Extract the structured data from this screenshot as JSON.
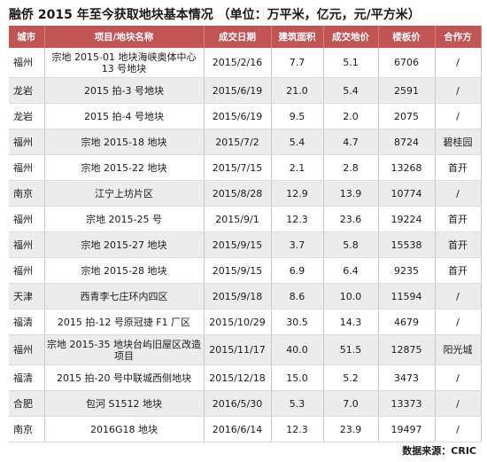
{
  "title": "融侨 2015 年至今获取地块基本情况 （单位：万平米，亿元，元/平方米）",
  "headers": [
    "城市",
    "项目/地块名称",
    "成交日期",
    "建筑面积",
    "成交地价",
    "楼板价",
    "合作方"
  ],
  "rows": [
    [
      "福州",
      "宗地 2015-01 地块海峡奥体中心 13 号地块",
      "2015/2/16",
      "7.7",
      "5.1",
      "6706",
      "/"
    ],
    [
      "龙岩",
      "2015 拍-3 号地块",
      "2015/6/19",
      "21.0",
      "5.4",
      "2591",
      "/"
    ],
    [
      "龙岩",
      "2015 拍-4 号地块",
      "2015/6/19",
      "9.5",
      "2.0",
      "2075",
      "/"
    ],
    [
      "福州",
      "宗地 2015-18 地块",
      "2015/7/2",
      "5.4",
      "4.7",
      "8724",
      "碧桂园"
    ],
    [
      "福州",
      "宗地 2015-22 地块",
      "2015/7/15",
      "2.1",
      "2.8",
      "13268",
      "首开"
    ],
    [
      "南京",
      "江宁上坊片区",
      "2015/8/28",
      "12.9",
      "13.9",
      "10774",
      "/"
    ],
    [
      "福州",
      "宗地 2015-25 号",
      "2015/9/1",
      "12.3",
      "23.6",
      "19224",
      "首开"
    ],
    [
      "福州",
      "宗地 2015-27 地块",
      "2015/9/15",
      "3.7",
      "5.8",
      "15538",
      "首开"
    ],
    [
      "福州",
      "宗地 2015-28 地块",
      "2015/9/15",
      "6.9",
      "6.4",
      "9235",
      "首开"
    ],
    [
      "天津",
      "西青李七庄环内四区",
      "2015/9/18",
      "8.6",
      "10.0",
      "11594",
      "/"
    ],
    [
      "福清",
      "2015 拍-12 号原冠捷 F1 厂区",
      "2015/10/29",
      "30.5",
      "14.3",
      "4679",
      "/"
    ],
    [
      "福州",
      "宗地 2015-35 地块台屿旧屋区改造项目",
      "2015/11/17",
      "40.0",
      "51.5",
      "12875",
      "阳光城"
    ],
    [
      "福清",
      "2015 拍-20 号中联城西侧地块",
      "2015/12/18",
      "15.0",
      "5.2",
      "3473",
      "/"
    ],
    [
      "合肥",
      "包河 S1512 地块",
      "2016/5/30",
      "5.3",
      "7.0",
      "13373",
      "/"
    ],
    [
      "南京",
      "2016G18 地块",
      "2016/6/14",
      "12.3",
      "23.9",
      "19497",
      "/"
    ]
  ],
  "source": "数据来源：CRIC"
}
